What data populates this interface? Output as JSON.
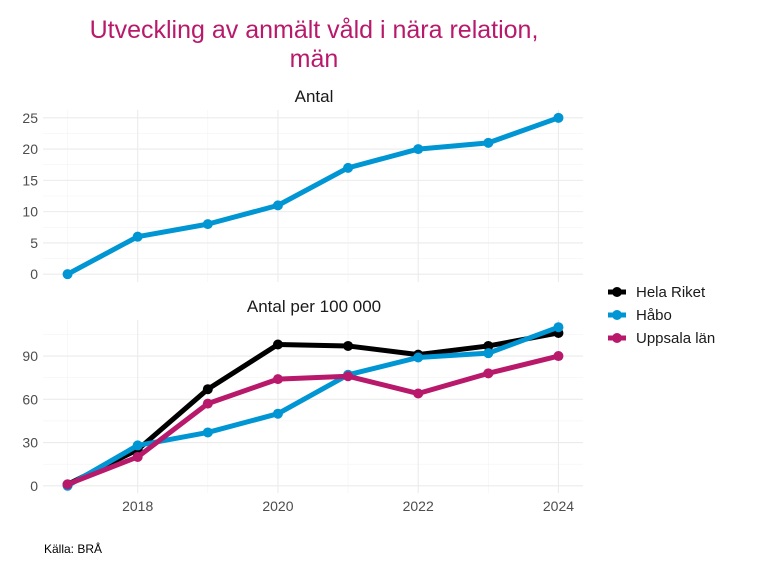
{
  "chart_data": {
    "type": "line",
    "title_lines": [
      "Utveckling av anmält våld i nära relation,",
      "män"
    ],
    "caption": "Källa: BRÅ",
    "x": [
      2017,
      2018,
      2019,
      2020,
      2021,
      2022,
      2023,
      2024
    ],
    "x_ticks": [
      2018,
      2020,
      2022,
      2024
    ],
    "x_tick_labels": [
      "2018",
      "2020",
      "2022",
      "2024"
    ],
    "xlim": [
      2016.65,
      2024.35
    ],
    "grid": true,
    "legend": {
      "position": "right",
      "entries": [
        {
          "name": "Hela Riket",
          "color": "#000000"
        },
        {
          "name": "Håbo",
          "color": "#0095D3"
        },
        {
          "name": "Uppsala län",
          "color": "#B8196B"
        }
      ]
    },
    "panels": [
      {
        "title": "Antal",
        "ylim": [
          -1.25,
          26.25
        ],
        "y_ticks": [
          0,
          5,
          10,
          15,
          20,
          25
        ],
        "y_tick_labels": [
          "0",
          "5",
          "10",
          "15",
          "20",
          "25"
        ],
        "series": [
          {
            "name": "Håbo",
            "color": "#0095D3",
            "values": [
              0,
              6,
              8,
              11,
              17,
              20,
              21,
              25
            ]
          }
        ]
      },
      {
        "title": "Antal per 100 000",
        "ylim": [
          -5,
          115
        ],
        "y_ticks": [
          0,
          30,
          60,
          90
        ],
        "y_tick_labels": [
          "0",
          "30",
          "60",
          "90"
        ],
        "series": [
          {
            "name": "Hela Riket",
            "color": "#000000",
            "values": [
              1,
              25,
              67,
              98,
              97,
              91,
              97,
              106
            ]
          },
          {
            "name": "Håbo",
            "color": "#0095D3",
            "values": [
              0,
              28,
              37,
              50,
              77,
              89,
              92,
              110
            ]
          },
          {
            "name": "Uppsala län",
            "color": "#B8196B",
            "values": [
              1,
              20,
              57,
              74,
              76,
              64,
              78,
              90
            ]
          }
        ]
      }
    ]
  }
}
